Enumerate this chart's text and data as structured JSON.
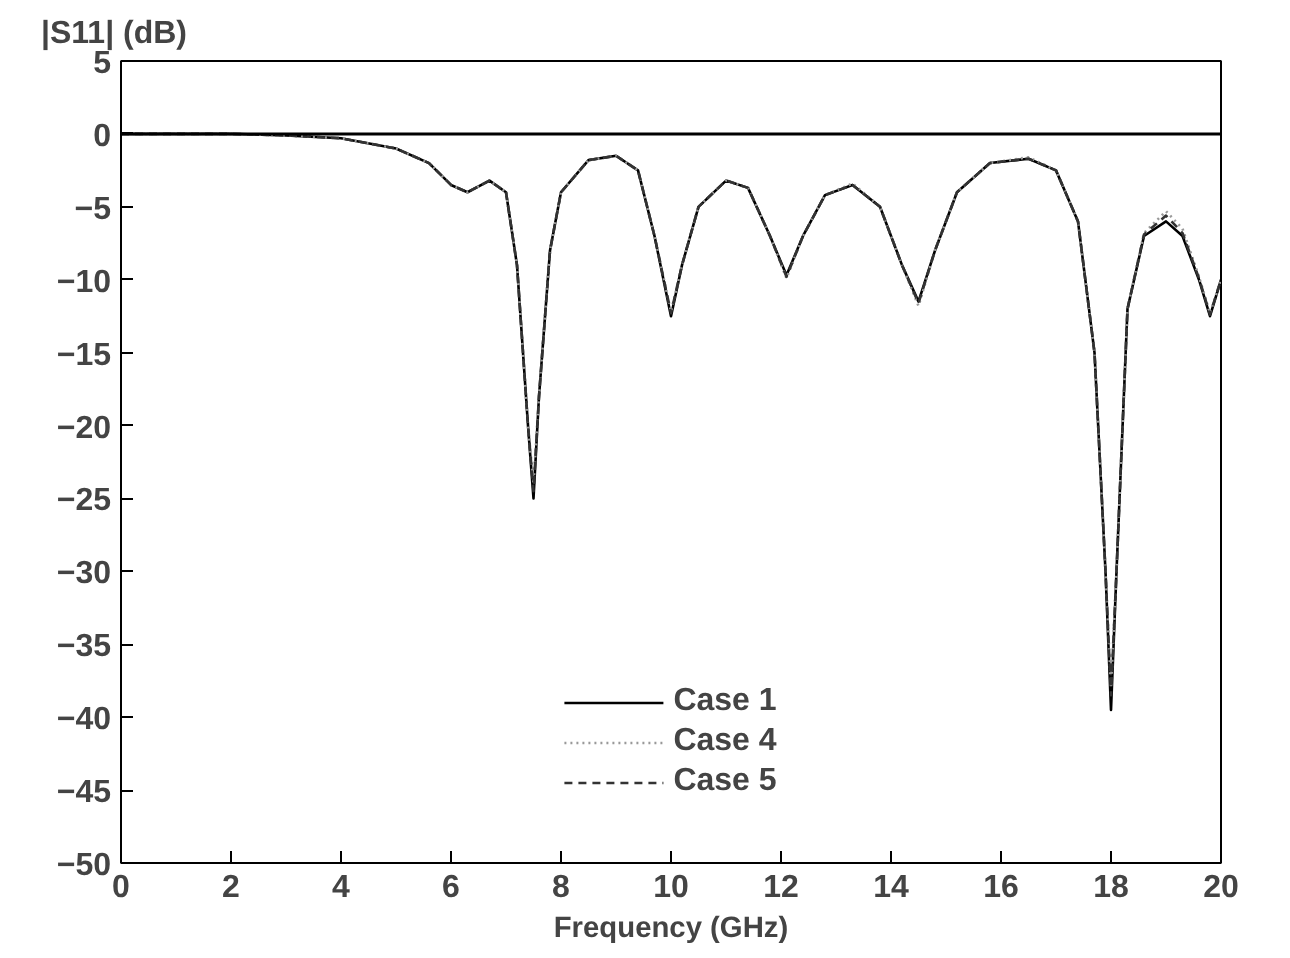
{
  "chart_data": {
    "type": "line",
    "xlabel": "Frequency (GHz)",
    "ylabel": "|S11| (dB)",
    "xlim": [
      0,
      20
    ],
    "ylim": [
      -50,
      5
    ],
    "xticks": [
      0,
      2,
      4,
      6,
      8,
      10,
      12,
      14,
      16,
      18,
      20
    ],
    "yticks": [
      -50,
      -45,
      -40,
      -35,
      -30,
      -25,
      -20,
      -15,
      -10,
      -5,
      0,
      5
    ],
    "grid": false,
    "legend": "bottom",
    "marker": "none",
    "ref_lines": [
      {
        "axis": "y",
        "value": 0,
        "color": "#000000"
      }
    ],
    "x": [
      0,
      2,
      3,
      4,
      5,
      5.6,
      6,
      6.3,
      6.7,
      7,
      7.2,
      7.4,
      7.5,
      7.6,
      7.8,
      8,
      8.5,
      9,
      9.4,
      9.7,
      10,
      10.2,
      10.5,
      11,
      11.4,
      11.8,
      12.1,
      12.4,
      12.8,
      13.3,
      13.8,
      14.2,
      14.5,
      14.8,
      15.2,
      15.8,
      16.5,
      17,
      17.4,
      17.7,
      17.9,
      18,
      18.1,
      18.3,
      18.6,
      19,
      19.3,
      19.6,
      19.8,
      20
    ],
    "series": [
      {
        "name": "Case 1",
        "color": "#000000",
        "line_style": "solid",
        "values": [
          0,
          0,
          -0.1,
          -0.3,
          -1,
          -2,
          -3.5,
          -4,
          -3.2,
          -4,
          -9,
          -20,
          -25,
          -18,
          -8,
          -4,
          -1.8,
          -1.5,
          -2.5,
          -7,
          -12.5,
          -9,
          -5,
          -3.2,
          -3.7,
          -7,
          -9.7,
          -7,
          -4.2,
          -3.5,
          -5,
          -9,
          -11.5,
          -8,
          -4,
          -2,
          -1.7,
          -2.5,
          -6,
          -15,
          -30,
          -39.5,
          -30,
          -12,
          -7,
          -6,
          -7,
          -10,
          -12.5,
          -10
        ]
      },
      {
        "name": "Case 4",
        "color": "#999999",
        "line_style": "dotted",
        "values": [
          0,
          0,
          -0.1,
          -0.3,
          -1,
          -2,
          -3.5,
          -4,
          -3.2,
          -4,
          -9,
          -20,
          -24,
          -18,
          -8,
          -4,
          -1.8,
          -1.5,
          -2.5,
          -7,
          -12.2,
          -9,
          -5,
          -3.2,
          -3.7,
          -7,
          -9.9,
          -7,
          -4.2,
          -3.4,
          -5,
          -9,
          -11.8,
          -8,
          -4,
          -2,
          -1.6,
          -2.5,
          -6,
          -15,
          -30,
          -38,
          -30,
          -12,
          -6.8,
          -5.3,
          -6.5,
          -9.8,
          -12.3,
          -10
        ]
      },
      {
        "name": "Case 5",
        "color": "#333333",
        "line_style": "dashed",
        "values": [
          0,
          0,
          -0.1,
          -0.3,
          -1,
          -2,
          -3.5,
          -4,
          -3.2,
          -4,
          -9,
          -20,
          -24.5,
          -18,
          -8,
          -4,
          -1.8,
          -1.5,
          -2.5,
          -7,
          -12.3,
          -9,
          -5,
          -3.2,
          -3.7,
          -7,
          -9.8,
          -7,
          -4.2,
          -3.5,
          -5,
          -9,
          -11.6,
          -8,
          -4,
          -2,
          -1.7,
          -2.5,
          -6,
          -15,
          -30,
          -38.5,
          -30,
          -12,
          -6.9,
          -5.6,
          -6.8,
          -9.9,
          -12.4,
          -10
        ]
      }
    ]
  }
}
